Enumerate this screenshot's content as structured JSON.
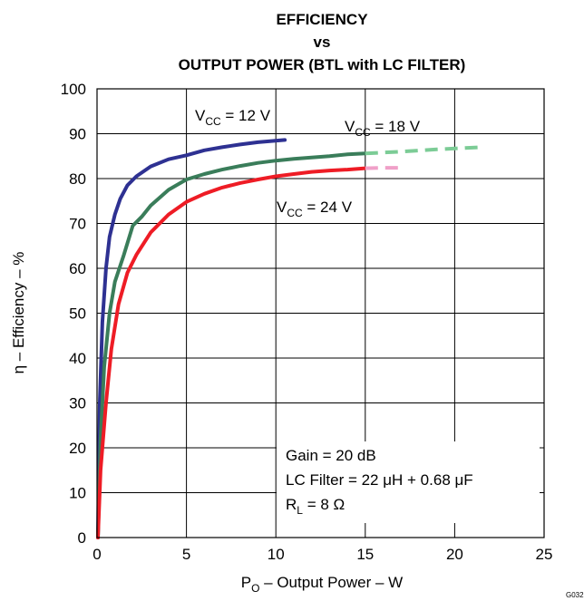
{
  "chart_data": {
    "type": "line",
    "title": [
      "EFFICIENCY",
      "vs",
      "OUTPUT POWER (BTL with LC FILTER)"
    ],
    "xlabel": {
      "main": "P",
      "sub": "O",
      "rest": " – Output Power – W"
    },
    "ylabel": "η – Efficiency – %",
    "xlim": [
      0,
      25
    ],
    "ylim": [
      0,
      100
    ],
    "xticks": [
      0,
      5,
      10,
      15,
      20,
      25
    ],
    "yticks": [
      0,
      10,
      20,
      30,
      40,
      50,
      60,
      70,
      80,
      90,
      100
    ],
    "grid": true,
    "series": [
      {
        "name": {
          "main": "V",
          "sub": "CC",
          "rest": " = 12 V"
        },
        "color": "#2e3192",
        "points": [
          [
            0.05,
            0
          ],
          [
            0.15,
            30
          ],
          [
            0.3,
            48
          ],
          [
            0.5,
            60
          ],
          [
            0.7,
            67
          ],
          [
            1.0,
            72
          ],
          [
            1.3,
            75.5
          ],
          [
            1.7,
            78.5
          ],
          [
            2.2,
            80.5
          ],
          [
            3,
            82.7
          ],
          [
            4,
            84.3
          ],
          [
            5,
            85.2
          ],
          [
            6,
            86.3
          ],
          [
            7,
            87
          ],
          [
            8,
            87.6
          ],
          [
            9,
            88.1
          ],
          [
            10.5,
            88.6
          ]
        ],
        "dashed_points": []
      },
      {
        "name": {
          "main": "V",
          "sub": "CC",
          "rest": " = 18 V"
        },
        "color": "#3a7d5a",
        "dashed_color": "#7ccc96",
        "points": [
          [
            0.05,
            0
          ],
          [
            0.2,
            22
          ],
          [
            0.4,
            38
          ],
          [
            0.7,
            50
          ],
          [
            1,
            57
          ],
          [
            1.5,
            63
          ],
          [
            2,
            69.5
          ],
          [
            2.5,
            71.5
          ],
          [
            3,
            74
          ],
          [
            4,
            77.5
          ],
          [
            5,
            79.8
          ],
          [
            6,
            81
          ],
          [
            7,
            82
          ],
          [
            8,
            82.8
          ],
          [
            9,
            83.5
          ],
          [
            10,
            84
          ],
          [
            11,
            84.4
          ],
          [
            12,
            84.7
          ],
          [
            13,
            85
          ],
          [
            14,
            85.4
          ],
          [
            15,
            85.6
          ]
        ],
        "dashed_points": [
          [
            15,
            85.6
          ],
          [
            17,
            86
          ],
          [
            19,
            86.5
          ],
          [
            21.5,
            87
          ]
        ]
      },
      {
        "name": {
          "main": "V",
          "sub": "CC",
          "rest": " = 24 V"
        },
        "color": "#ee1c25",
        "dashed_color": "#f0a0c8",
        "points": [
          [
            0.05,
            0
          ],
          [
            0.2,
            15
          ],
          [
            0.5,
            30
          ],
          [
            0.8,
            42
          ],
          [
            1.2,
            52
          ],
          [
            1.7,
            59
          ],
          [
            2.2,
            63
          ],
          [
            3,
            68
          ],
          [
            4,
            72
          ],
          [
            5,
            74.8
          ],
          [
            6,
            76.6
          ],
          [
            7,
            78
          ],
          [
            8,
            79
          ],
          [
            9,
            79.8
          ],
          [
            10,
            80.5
          ],
          [
            11,
            81
          ],
          [
            12,
            81.5
          ],
          [
            13,
            81.8
          ],
          [
            14,
            82
          ],
          [
            15,
            82.3
          ]
        ],
        "dashed_points": [
          [
            15,
            82.3
          ],
          [
            16,
            82.4
          ],
          [
            17,
            82.4
          ]
        ]
      }
    ],
    "annotations": [
      {
        "main": "Gain = 20 dB"
      },
      {
        "main": "LC Filter = 22 μH + 0.68 μF"
      },
      {
        "main": "R",
        "sub": "L",
        "rest": " = 8 Ω"
      }
    ],
    "figure_id": "G032"
  }
}
